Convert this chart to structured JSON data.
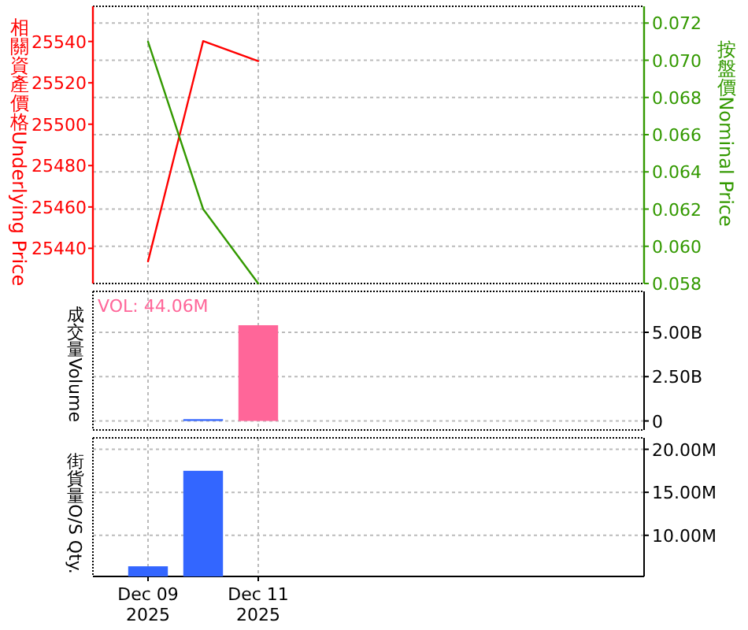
{
  "chart_data": [
    {
      "type": "line",
      "x": [
        "2025-12-09",
        "2025-12-10",
        "2025-12-11"
      ],
      "xlim": [
        "2025-12-08",
        "2025-12-18"
      ],
      "xticks": [
        {
          "value": "2025-12-09",
          "label": null
        },
        {
          "value": "2025-12-11",
          "label": null
        }
      ],
      "ylabel": "相關資產價格Underlying Price",
      "y2label": "按盤價Nominal Price",
      "ylim": [
        25423,
        25557
      ],
      "yticks": [
        25440,
        25460,
        25480,
        25500,
        25520,
        25540
      ],
      "y2lim": [
        0.058,
        0.0729
      ],
      "y2ticks": [
        {
          "value": 0.058,
          "label": "0.058"
        },
        {
          "value": 0.06,
          "label": "0.060"
        },
        {
          "value": 0.062,
          "label": "0.062"
        },
        {
          "value": 0.064,
          "label": "0.064"
        },
        {
          "value": 0.066,
          "label": "0.066"
        },
        {
          "value": 0.068,
          "label": "0.068"
        },
        {
          "value": 0.07,
          "label": "0.070"
        },
        {
          "value": 0.072,
          "label": "0.072"
        }
      ],
      "grid": true,
      "tick_labels": "y",
      "series": [
        {
          "color": "#ff0000",
          "values": [
            25433.7,
            25540.2,
            25530.5
          ]
        },
        {
          "color": "#339900",
          "axis": "y2",
          "values": [
            0.071,
            0.062,
            0.058
          ]
        }
      ]
    },
    {
      "type": "bar",
      "xlim": [
        "2025-12-08",
        "2025-12-18"
      ],
      "xticks": [
        {
          "value": "2025-12-09",
          "label": null
        },
        {
          "value": "2025-12-11",
          "label": null
        }
      ],
      "ylabel": "成交量Volume",
      "ylim": [
        -510000000,
        7310000000
      ],
      "yticks": [
        {
          "value": 0,
          "label": "0"
        },
        {
          "value": 2500000000,
          "label": "2.50B"
        },
        {
          "value": 5000000000,
          "label": "5.00B"
        }
      ],
      "grid": true,
      "tick_labels": "y",
      "annotations": [
        "VOL: 44.06M"
      ],
      "series": [
        {
          "x": [
            "2025-12-10",
            "2025-12-11"
          ],
          "colors": [
            "#3366ff",
            "#ff6699"
          ],
          "values": [
            100000000,
            5400000000
          ]
        }
      ]
    },
    {
      "type": "bar",
      "xlim": [
        "2025-12-08",
        "2025-12-18"
      ],
      "xticks": [
        {
          "value": "2025-12-09",
          "label": "Dec 09 2025"
        },
        {
          "value": "2025-12-11",
          "label": "Dec 11 2025"
        }
      ],
      "ylabel": "街貨量O/S Qty.",
      "ylim": [
        5220000,
        21330000
      ],
      "yticks": [
        {
          "value": 10000000,
          "label": "10.00M"
        },
        {
          "value": 15000000,
          "label": "15.00M"
        },
        {
          "value": 20000000,
          "label": "20.00M"
        }
      ],
      "grid": true,
      "series": [
        {
          "x": [
            "2025-12-09",
            "2025-12-10"
          ],
          "color": "#3366ff",
          "values": [
            6400000,
            17500000
          ]
        }
      ]
    }
  ]
}
